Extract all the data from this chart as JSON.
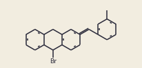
{
  "bg_color": "#f2ede0",
  "bond_color": "#2a2a3a",
  "text_color": "#2a2a3a",
  "lw": 1.1,
  "figsize": [
    2.06,
    0.99
  ],
  "dpi": 100,
  "font_size": 6.5
}
